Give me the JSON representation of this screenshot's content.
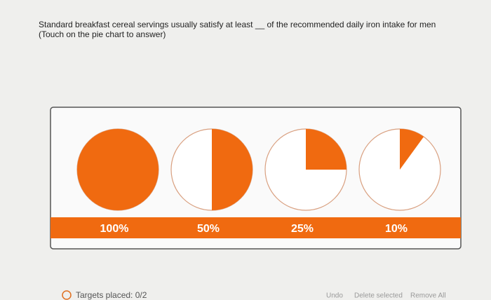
{
  "question": {
    "text": "Standard breakfast cereal servings usually satisfy at least __ of the recommended daily iron intake for men",
    "hint": "(Touch on the pie chart to answer)"
  },
  "options": [
    {
      "label": "100%",
      "value": 100
    },
    {
      "label": "50%",
      "value": 50
    },
    {
      "label": "25%",
      "value": 25
    },
    {
      "label": "10%",
      "value": 10
    }
  ],
  "footer": {
    "status": "Targets placed: 0/2",
    "buttons": [
      "Undo",
      "Delete selected",
      "Remove All"
    ]
  }
}
